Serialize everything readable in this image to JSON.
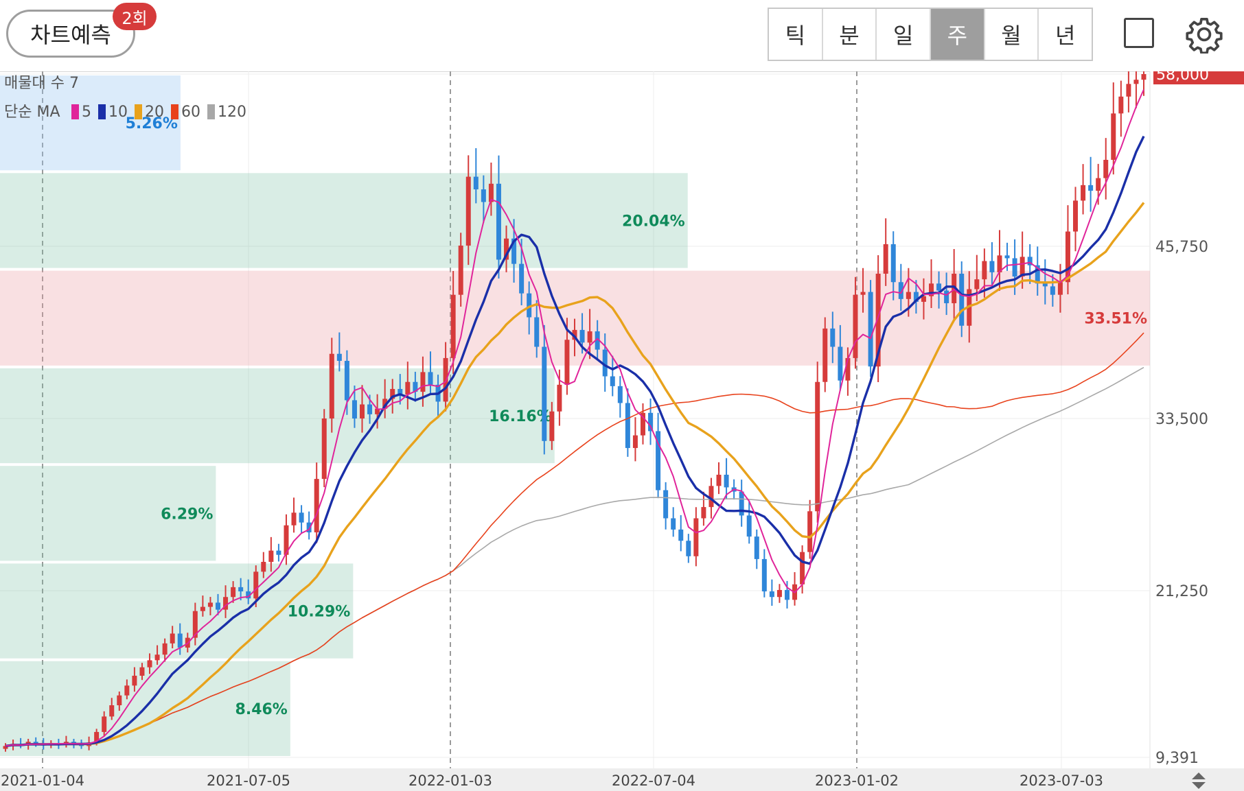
{
  "toolbar": {
    "predict_label": "차트예측",
    "predict_badge": "2회",
    "period_tabs": [
      {
        "label": "틱",
        "active": false
      },
      {
        "label": "분",
        "active": false
      },
      {
        "label": "일",
        "active": false
      },
      {
        "label": "주",
        "active": true
      },
      {
        "label": "월",
        "active": false
      },
      {
        "label": "년",
        "active": false
      }
    ],
    "icons": [
      "square-icon",
      "gear-icon"
    ]
  },
  "legend": {
    "volume_profile_label": "매물대 수 7",
    "ma_label": "단순 MA",
    "ma_items": [
      {
        "period": "5",
        "color": "#e0249a"
      },
      {
        "period": "10",
        "color": "#1a2fa8"
      },
      {
        "period": "20",
        "color": "#e8a21c"
      },
      {
        "period": "60",
        "color": "#e8421c"
      },
      {
        "period": "120",
        "color": "#a8a8a8"
      }
    ]
  },
  "chart_data": {
    "type": "candlestick",
    "interval": "weekly",
    "y_ticks": [
      "58,000",
      "45,750",
      "33,500",
      "21,250",
      "9,391"
    ],
    "y_range": [
      9391,
      58000
    ],
    "x_ticks": [
      "2021-01-04",
      "2021-07-05",
      "2022-01-03",
      "2022-07-04",
      "2023-01-02",
      "2023-07-03"
    ],
    "last_price": "58,000",
    "colors": {
      "up": "#d63b3b",
      "down": "#2f86d9",
      "ma5": "#e0249a",
      "ma10": "#1a2fa8",
      "ma20": "#e8a21c",
      "ma60": "#e8421c",
      "ma120": "#a8a8a8"
    },
    "candles_close": [
      10200,
      10350,
      10250,
      10500,
      10350,
      10250,
      10400,
      10300,
      10500,
      10350,
      10200,
      10450,
      11200,
      12300,
      13100,
      13800,
      14500,
      15200,
      15800,
      16300,
      16700,
      17500,
      18200,
      17200,
      17900,
      19800,
      20100,
      20400,
      19900,
      20800,
      21500,
      21200,
      20700,
      22600,
      23300,
      24100,
      23800,
      25900,
      26800,
      26100,
      25400,
      29200,
      33500,
      38100,
      37600,
      34800,
      33500,
      34500,
      33800,
      34200,
      34900,
      35600,
      35200,
      36100,
      35400,
      36800,
      35900,
      34700,
      37800,
      42300,
      45800,
      50700,
      49800,
      48900,
      50200,
      44800,
      46300,
      44500,
      42400,
      40700,
      38600,
      31900,
      34000,
      35900,
      39100,
      39800,
      38900,
      39700,
      38400,
      36500,
      35800,
      34600,
      31400,
      32300,
      33900,
      32600,
      28400,
      26400,
      25600,
      24800,
      23700,
      26400,
      27200,
      28700,
      29500,
      28600,
      28300,
      26600,
      25100,
      23500,
      21200,
      20800,
      21300,
      20600,
      21700,
      24000,
      26900,
      36100,
      39900,
      38600,
      36200,
      37800,
      42300,
      42500,
      37200,
      43800,
      45900,
      43200,
      42000,
      42500,
      41800,
      42200,
      43100,
      42600,
      41700,
      43800,
      40100,
      42700,
      43400,
      44700,
      43900,
      45100,
      44900,
      43600,
      45000,
      44400,
      43100,
      42900,
      42300,
      43200,
      46800,
      49000,
      50100,
      49700,
      50600,
      51900,
      55200,
      56400,
      57300,
      57600,
      58000
    ],
    "volume_profile": [
      {
        "label": "5.26%"
      },
      {
        "label": "20.04%"
      },
      {
        "label": "33.51%",
        "highlight": true
      },
      {
        "label": "16.16%"
      },
      {
        "label": "6.29%"
      },
      {
        "label": "10.29%"
      },
      {
        "label": "8.46%"
      }
    ]
  }
}
